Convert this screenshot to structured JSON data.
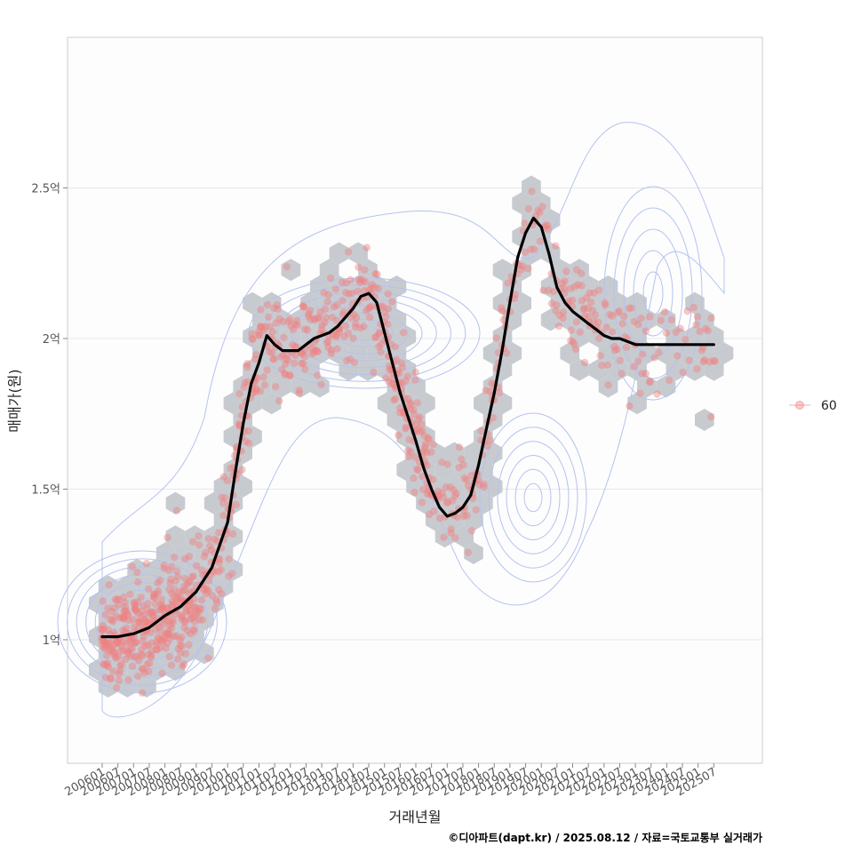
{
  "chart_data": {
    "type": "scatter",
    "xlabel": "거래년월",
    "ylabel": "매매가(원)",
    "caption": "©디아파트(dapt.kr) / 2025.08.12 / 자료=국토교통부 실거래가",
    "x_tick_labels": [
      "200601",
      "200607",
      "200701",
      "200707",
      "200801",
      "200807",
      "200901",
      "200907",
      "201001",
      "201007",
      "201101",
      "201107",
      "201201",
      "201207",
      "201301",
      "201307",
      "201401",
      "201407",
      "201501",
      "201507",
      "201601",
      "201607",
      "201701",
      "201707",
      "201801",
      "201807",
      "201901",
      "201907",
      "202001",
      "202007",
      "202101",
      "202107",
      "202201",
      "202207",
      "202301",
      "202307",
      "202401",
      "202407",
      "202501",
      "202507"
    ],
    "y_ticks": [
      {
        "value": 1.0,
        "label": "1억"
      },
      {
        "value": 1.5,
        "label": "1.5억"
      },
      {
        "value": 2.0,
        "label": "2억"
      },
      {
        "value": 2.5,
        "label": "2.5억"
      }
    ],
    "ylim": [
      0.6,
      3.0
    ],
    "y_unit": "억",
    "grid": "horizontal",
    "legend": {
      "position": "right",
      "entries": [
        {
          "label": "60",
          "color": "#f08080"
        }
      ]
    },
    "colors": {
      "points": "#f08080",
      "hexbin": "#c4c8ce",
      "contour": "#b5c2f0",
      "trend": "#000000",
      "grid": "#e6e6e6",
      "panel_border": "#cccccc"
    },
    "trend": {
      "x": [
        "2006-01",
        "2006-07",
        "2007-01",
        "2007-07",
        "2008-01",
        "2008-07",
        "2009-01",
        "2009-07",
        "2010-01",
        "2010-04",
        "2010-07",
        "2010-10",
        "2011-01",
        "2011-04",
        "2011-07",
        "2011-10",
        "2012-01",
        "2012-04",
        "2012-07",
        "2012-10",
        "2013-01",
        "2013-04",
        "2013-07",
        "2013-10",
        "2014-01",
        "2014-04",
        "2014-07",
        "2014-10",
        "2015-01",
        "2015-04",
        "2015-07",
        "2015-10",
        "2016-01",
        "2016-04",
        "2016-07",
        "2016-10",
        "2017-01",
        "2017-04",
        "2017-07",
        "2017-10",
        "2018-01",
        "2018-04",
        "2018-07",
        "2018-10",
        "2019-01",
        "2019-04",
        "2019-07",
        "2019-10",
        "2020-01",
        "2020-04",
        "2020-07",
        "2020-10",
        "2021-01",
        "2021-04",
        "2021-07",
        "2021-10",
        "2022-01",
        "2022-04",
        "2022-07",
        "2022-10",
        "2023-01",
        "2023-04",
        "2023-07",
        "2023-10",
        "2024-01",
        "2024-04",
        "2024-07",
        "2024-10",
        "2025-01",
        "2025-04",
        "2025-07"
      ],
      "y": [
        1.01,
        1.01,
        1.02,
        1.04,
        1.08,
        1.11,
        1.16,
        1.24,
        1.39,
        1.56,
        1.72,
        1.85,
        1.92,
        2.01,
        1.98,
        1.96,
        1.96,
        1.96,
        1.98,
        2.0,
        2.01,
        2.02,
        2.04,
        2.07,
        2.1,
        2.14,
        2.15,
        2.12,
        2.02,
        1.92,
        1.82,
        1.74,
        1.66,
        1.57,
        1.5,
        1.44,
        1.41,
        1.42,
        1.44,
        1.48,
        1.58,
        1.7,
        1.82,
        1.96,
        2.12,
        2.27,
        2.35,
        2.4,
        2.37,
        2.28,
        2.17,
        2.12,
        2.09,
        2.07,
        2.05,
        2.03,
        2.01,
        2.0,
        2.0,
        1.99,
        1.98,
        1.98,
        1.98,
        1.98,
        1.98,
        1.98,
        1.98,
        1.98,
        1.98,
        1.98,
        1.98
      ]
    }
  }
}
